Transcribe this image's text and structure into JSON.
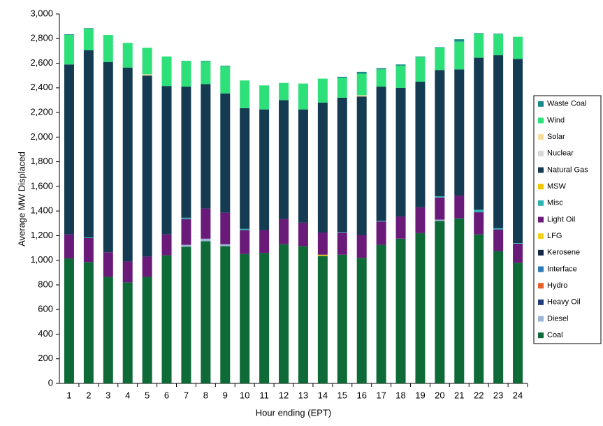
{
  "chart_data": {
    "type": "stacked_bar",
    "x_label": "Hour ending (EPT)",
    "y_label": "Average MW Displaced",
    "categories": [
      "1",
      "2",
      "3",
      "4",
      "5",
      "6",
      "7",
      "8",
      "9",
      "10",
      "11",
      "12",
      "13",
      "14",
      "15",
      "16",
      "17",
      "18",
      "19",
      "20",
      "21",
      "22",
      "23",
      "24"
    ],
    "ylim": [
      0,
      3000
    ],
    "yticks": [
      0,
      200,
      400,
      600,
      800,
      {
        "value": 1000,
        "label": "1,000"
      },
      {
        "value": 1200,
        "label": "1,200"
      },
      {
        "value": 1400,
        "label": "1,400"
      },
      {
        "value": 1600,
        "label": "1,600"
      },
      {
        "value": 1800,
        "label": "1,800"
      },
      {
        "value": 2000,
        "label": "2,000"
      },
      {
        "value": 2200,
        "label": "2,200"
      },
      {
        "value": 2400,
        "label": "2,400"
      },
      {
        "value": 2600,
        "label": "2,600"
      },
      {
        "value": 2800,
        "label": "2,800"
      },
      {
        "value": 3000,
        "label": "3,000"
      }
    ],
    "grid": false,
    "legend": "right",
    "series": [
      {
        "name": "Coal",
        "color": "#0e6b37",
        "values": [
          1015,
          985,
          865,
          820,
          865,
          1040,
          1110,
          1155,
          1115,
          1050,
          1060,
          1130,
          1115,
          1035,
          1045,
          1020,
          1125,
          1175,
          1220,
          1320,
          1340,
          1210,
          1075,
          980
        ]
      },
      {
        "name": "Diesel",
        "color": "#9bb5d6",
        "values": [
          0,
          0,
          0,
          0,
          0,
          0,
          15,
          20,
          15,
          0,
          0,
          0,
          0,
          0,
          0,
          0,
          0,
          0,
          0,
          10,
          0,
          0,
          0,
          0
        ]
      },
      {
        "name": "Heavy Oil",
        "color": "#1f3d7a",
        "values": [
          0,
          0,
          0,
          0,
          0,
          0,
          0,
          0,
          0,
          0,
          0,
          0,
          0,
          0,
          0,
          0,
          0,
          0,
          0,
          0,
          0,
          0,
          0,
          0
        ]
      },
      {
        "name": "Hydro",
        "color": "#e8602c",
        "values": [
          0,
          0,
          0,
          0,
          0,
          0,
          0,
          0,
          0,
          0,
          0,
          0,
          0,
          0,
          0,
          0,
          0,
          0,
          0,
          0,
          0,
          0,
          0,
          0
        ]
      },
      {
        "name": "Interface",
        "color": "#2a7ab5",
        "values": [
          0,
          0,
          0,
          0,
          0,
          0,
          0,
          0,
          0,
          0,
          0,
          0,
          0,
          0,
          0,
          0,
          0,
          0,
          0,
          0,
          0,
          0,
          0,
          0
        ]
      },
      {
        "name": "Kerosene",
        "color": "#13284a",
        "values": [
          0,
          0,
          0,
          0,
          0,
          0,
          0,
          0,
          0,
          0,
          0,
          0,
          0,
          0,
          0,
          0,
          0,
          0,
          0,
          0,
          0,
          0,
          0,
          0
        ]
      },
      {
        "name": "LFG",
        "color": "#f2d21b",
        "values": [
          0,
          0,
          0,
          0,
          0,
          0,
          0,
          0,
          0,
          0,
          0,
          0,
          0,
          10,
          0,
          0,
          0,
          0,
          0,
          0,
          0,
          0,
          0,
          0
        ]
      },
      {
        "name": "Light Oil",
        "color": "#6a1b7a",
        "values": [
          195,
          195,
          200,
          170,
          165,
          170,
          210,
          245,
          255,
          195,
          185,
          205,
          190,
          180,
          180,
          185,
          190,
          180,
          210,
          180,
          185,
          180,
          175,
          155
        ]
      },
      {
        "name": "Misc",
        "color": "#2fb5b0",
        "values": [
          0,
          5,
          0,
          0,
          0,
          0,
          10,
          0,
          0,
          10,
          0,
          0,
          0,
          0,
          5,
          0,
          5,
          0,
          0,
          10,
          0,
          20,
          10,
          5
        ]
      },
      {
        "name": "MSW",
        "color": "#f0c800",
        "values": [
          0,
          0,
          0,
          0,
          0,
          0,
          0,
          0,
          0,
          0,
          0,
          0,
          0,
          0,
          0,
          0,
          0,
          0,
          0,
          0,
          0,
          0,
          0,
          0
        ]
      },
      {
        "name": "Natural Gas",
        "color": "#143b52",
        "values": [
          1380,
          1520,
          1545,
          1575,
          1470,
          1205,
          1065,
          1010,
          970,
          980,
          980,
          965,
          920,
          1055,
          1090,
          1125,
          1090,
          1045,
          1020,
          1025,
          1025,
          1235,
          1405,
          1495
        ]
      },
      {
        "name": "Nuclear",
        "color": "#d8d8d8",
        "values": [
          0,
          0,
          0,
          0,
          0,
          0,
          0,
          0,
          0,
          0,
          0,
          0,
          0,
          0,
          0,
          0,
          0,
          0,
          0,
          0,
          0,
          0,
          0,
          0
        ]
      },
      {
        "name": "Solar",
        "color": "#f7dc9a",
        "values": [
          0,
          0,
          0,
          0,
          10,
          0,
          0,
          0,
          0,
          0,
          0,
          0,
          0,
          0,
          0,
          10,
          0,
          0,
          0,
          0,
          0,
          0,
          0,
          0
        ]
      },
      {
        "name": "Wind",
        "color": "#2ee07a",
        "values": [
          240,
          175,
          220,
          200,
          215,
          240,
          210,
          185,
          220,
          225,
          195,
          140,
          210,
          195,
          160,
          175,
          140,
          180,
          200,
          180,
          225,
          195,
          170,
          180
        ]
      },
      {
        "name": "Waste Coal",
        "color": "#1b8a8a",
        "values": [
          5,
          5,
          0,
          0,
          0,
          0,
          0,
          5,
          5,
          0,
          0,
          0,
          0,
          0,
          10,
          15,
          10,
          10,
          5,
          5,
          20,
          5,
          5,
          0
        ]
      }
    ]
  }
}
